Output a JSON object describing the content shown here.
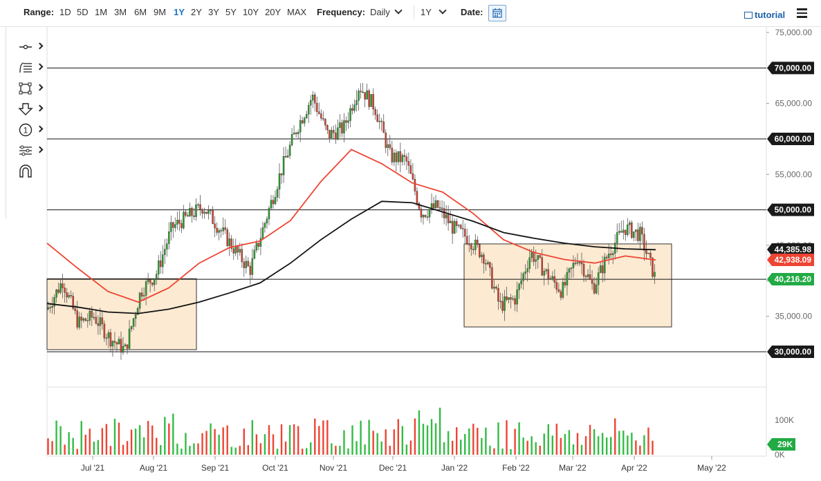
{
  "toolbar": {
    "range_label": "Range:",
    "ranges": [
      "1D",
      "5D",
      "1M",
      "3M",
      "6M",
      "9M",
      "1Y",
      "2Y",
      "3Y",
      "5Y",
      "10Y",
      "20Y",
      "MAX"
    ],
    "active_range": "1Y",
    "frequency_label": "Frequency:",
    "frequency_value": "Daily",
    "period_value": "1Y",
    "date_label": "Date:",
    "tutorial_label": "tutorial"
  },
  "tools": [
    "crosshair-tool",
    "fibonacci-tool",
    "rectangle-tool",
    "arrow-tool",
    "counter-tool",
    "pattern-tool",
    "magnet-tool"
  ],
  "chart_data": {
    "type": "candlestick",
    "ylim": [
      26000,
      75000
    ],
    "y_ticks": [
      {
        "v": 35000,
        "label": "35,000.00"
      },
      {
        "v": 40000,
        "label": "40,000.00"
      },
      {
        "v": 45000,
        "label": "45,000.00"
      },
      {
        "v": 55000,
        "label": "55,000.00"
      },
      {
        "v": 65000,
        "label": "65,000.00"
      },
      {
        "v": 75000,
        "label": "75,000.00"
      }
    ],
    "x_ticks": [
      "Jul '21",
      "Aug '21",
      "Sep '21",
      "Oct '21",
      "Nov '21",
      "Dec '21",
      "Jan '22",
      "Feb '22",
      "Mar '22",
      "Apr '22",
      "May '22"
    ],
    "horizontal_lines": [
      {
        "v": 70000,
        "label": "70,000.00"
      },
      {
        "v": 60000,
        "label": "60,000.00"
      },
      {
        "v": 50000,
        "label": "50,000.00"
      },
      {
        "v": 40216.2,
        "label": "40,216.20"
      },
      {
        "v": 30000,
        "label": "30,000.00"
      }
    ],
    "price_labels": [
      {
        "v": 44385.98,
        "label": "44,385.98",
        "color": "#1a1a1a"
      },
      {
        "v": 42938.09,
        "label": "42,938.09",
        "color": "#ee4433"
      },
      {
        "v": 40216.2,
        "label": "40,216.20",
        "color": "#22aa44"
      }
    ],
    "boxes": [
      {
        "start": "Jun '21",
        "end": "Aug '21",
        "low": 30300,
        "high": 40300
      },
      {
        "start": "Jan '22",
        "end": "Apr '22",
        "low": 33500,
        "high": 45200
      }
    ],
    "close_path": [
      [
        "Jun '21",
        36000
      ],
      [
        "Jun '21",
        40000
      ],
      [
        "Jul '21",
        34000
      ],
      [
        "Jul '21",
        35000
      ],
      [
        "Jul '21",
        32000
      ],
      [
        "Jul '21",
        30200
      ],
      [
        "Aug '21",
        38500
      ],
      [
        "Aug '21",
        41000
      ],
      [
        "Aug '21",
        47500
      ],
      [
        "Aug '21",
        49000
      ],
      [
        "Sep '21",
        50500
      ],
      [
        "Sep '21",
        47500
      ],
      [
        "Sep '21",
        44500
      ],
      [
        "Sep '21",
        41500
      ],
      [
        "Oct '21",
        48500
      ],
      [
        "Oct '21",
        55500
      ],
      [
        "Oct '21",
        61500
      ],
      [
        "Oct '21",
        66000
      ],
      [
        "Oct '21",
        60500
      ],
      [
        "Nov '21",
        61500
      ],
      [
        "Nov '21",
        67500
      ],
      [
        "Nov '21",
        64500
      ],
      [
        "Nov '21",
        57500
      ],
      [
        "Dec '21",
        57000
      ],
      [
        "Dec '21",
        49500
      ],
      [
        "Dec '21",
        50500
      ],
      [
        "Dec '21",
        47500
      ],
      [
        "Jan '22",
        46000
      ],
      [
        "Jan '22",
        43500
      ],
      [
        "Jan '22",
        36500
      ],
      [
        "Feb '22",
        37500
      ],
      [
        "Feb '22",
        44000
      ],
      [
        "Feb '22",
        41000
      ],
      [
        "Mar '22",
        38500
      ],
      [
        "Mar '22",
        43500
      ],
      [
        "Mar '22",
        39000
      ],
      [
        "Mar '22",
        44000
      ],
      [
        "Mar '22",
        47500
      ],
      [
        "Apr '22",
        46500
      ],
      [
        "Apr '22",
        40200
      ]
    ],
    "ma_slow": [
      [
        "Jun '21",
        36800
      ],
      [
        "Jul '21",
        36300
      ],
      [
        "Jul '21",
        35600
      ],
      [
        "Aug '21",
        35400
      ],
      [
        "Aug '21",
        36000
      ],
      [
        "Sep '21",
        37000
      ],
      [
        "Sep '21",
        38300
      ],
      [
        "Oct '21",
        39700
      ],
      [
        "Oct '21",
        42500
      ],
      [
        "Nov '21",
        45800
      ],
      [
        "Nov '21",
        48700
      ],
      [
        "Dec '21",
        51200
      ],
      [
        "Dec '21",
        51000
      ],
      [
        "Jan '22",
        49700
      ],
      [
        "Jan '22",
        48400
      ],
      [
        "Feb '22",
        46800
      ],
      [
        "Feb '22",
        46000
      ],
      [
        "Mar '22",
        45300
      ],
      [
        "Mar '22",
        44800
      ],
      [
        "Apr '22",
        44500
      ],
      [
        "Apr '22",
        44386
      ]
    ],
    "ma_fast": [
      [
        "Jun '21",
        45300
      ],
      [
        "Jul '21",
        41800
      ],
      [
        "Jul '21",
        38500
      ],
      [
        "Aug '21",
        37000
      ],
      [
        "Aug '21",
        39000
      ],
      [
        "Sep '21",
        42500
      ],
      [
        "Sep '21",
        44700
      ],
      [
        "Oct '21",
        45600
      ],
      [
        "Oct '21",
        48500
      ],
      [
        "Nov '21",
        54000
      ],
      [
        "Nov '21",
        58500
      ],
      [
        "Dec '21",
        56500
      ],
      [
        "Dec '21",
        53800
      ],
      [
        "Jan '22",
        52500
      ],
      [
        "Jan '22",
        49500
      ],
      [
        "Feb '22",
        45800
      ],
      [
        "Feb '22",
        44000
      ],
      [
        "Mar '22",
        43000
      ],
      [
        "Mar '22",
        42500
      ],
      [
        "Apr '22",
        43500
      ],
      [
        "Apr '22",
        42938
      ]
    ],
    "volume": {
      "tick_labels": [
        "100K",
        "0K"
      ],
      "last_label": "29K"
    }
  }
}
